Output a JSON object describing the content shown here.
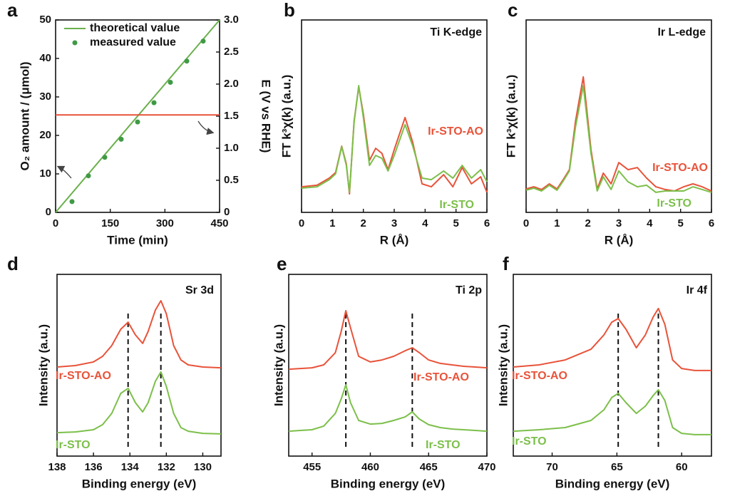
{
  "chart_data": [
    {
      "type": "line",
      "panel_label": "a",
      "xlabel": "Time (min)",
      "ylabel": "O₂ amount / (μmol)",
      "y2label": "E (V vs RHE)",
      "xlim": [
        0,
        450
      ],
      "xticks": [
        0,
        150,
        300,
        450
      ],
      "ylim": [
        0,
        50
      ],
      "yticks": [
        0,
        10,
        20,
        30,
        40,
        50
      ],
      "y2lim": [
        0,
        3.0
      ],
      "y2ticks": [
        0,
        0.5,
        {
          "value": 1.0,
          "label": "1.0"
        },
        1.5,
        {
          "value": 2.0,
          "label": "2.0"
        },
        2.5,
        {
          "value": 3.0,
          "label": "3.0"
        }
      ],
      "legend": "upper left",
      "series": [
        {
          "name": "theoretical value",
          "type": "line",
          "color": "#6ab04c",
          "x": [
            0,
            450
          ],
          "values": [
            0,
            50
          ]
        },
        {
          "name": "measured value",
          "type": "scatter",
          "color": "#3f9a45",
          "x": [
            45,
            90,
            135,
            180,
            225,
            270,
            315,
            360,
            405
          ],
          "values": [
            2.8,
            9.5,
            14.3,
            19.0,
            23.5,
            28.5,
            33.8,
            39.3,
            44.5
          ]
        },
        {
          "type": "line",
          "color": "#e8533a",
          "axis": "y2",
          "x": [
            0,
            450
          ],
          "values": [
            1.52,
            1.52
          ]
        }
      ]
    },
    {
      "type": "line",
      "panel_label": "b",
      "annotation": "Ti K-edge",
      "xlabel": "R (Å)",
      "ylabel": "FT k³χ(k) (a.u.)",
      "xlim": [
        0,
        6
      ],
      "xticks": [
        0,
        1,
        2,
        3,
        4,
        5,
        6
      ],
      "ylim": [
        0,
        10
      ],
      "x": [
        0,
        0.5,
        0.9,
        1.1,
        1.3,
        1.45,
        1.55,
        1.7,
        1.85,
        2.0,
        2.2,
        2.4,
        2.6,
        2.8,
        3.0,
        3.35,
        3.6,
        3.9,
        4.2,
        4.6,
        4.9,
        5.2,
        5.5,
        5.8,
        6.0
      ],
      "series": [
        {
          "name": "Ir-STO-AO",
          "color": "#e8533a",
          "values": [
            1.33,
            1.41,
            1.78,
            2.07,
            3.44,
            2.52,
            0.96,
            4.74,
            6.52,
            5.11,
            2.7,
            3.33,
            3.07,
            2.22,
            3.26,
            4.93,
            3.63,
            1.48,
            1.33,
            1.96,
            1.33,
            2.33,
            1.48,
            1.85,
            1.04
          ]
        },
        {
          "name": "Ir-STO",
          "color": "#7cbf4a",
          "values": [
            1.26,
            1.33,
            1.7,
            2.0,
            3.41,
            2.44,
            1.04,
            4.67,
            6.59,
            4.93,
            2.44,
            2.96,
            2.81,
            2.15,
            2.96,
            4.56,
            3.44,
            1.78,
            1.7,
            2.15,
            1.78,
            2.44,
            1.78,
            2.22,
            1.59
          ]
        }
      ]
    },
    {
      "type": "line",
      "panel_label": "c",
      "annotation": "Ir L-edge",
      "xlabel": "R (Å)",
      "ylabel": "FT k³χ(k) (a.u.)",
      "xlim": [
        0,
        6
      ],
      "xticks": [
        0,
        1,
        2,
        3,
        4,
        5,
        6
      ],
      "ylim": [
        0,
        10
      ],
      "x": [
        0,
        0.25,
        0.5,
        0.75,
        1.0,
        1.2,
        1.4,
        1.6,
        1.85,
        2.1,
        2.3,
        2.5,
        2.75,
        3.0,
        3.3,
        3.6,
        3.9,
        4.2,
        4.5,
        4.8,
        5.1,
        5.4,
        5.7,
        6.0
      ],
      "series": [
        {
          "name": "Ir-STO-AO",
          "color": "#e8533a",
          "values": [
            1.22,
            1.33,
            1.19,
            1.48,
            1.22,
            1.7,
            2.22,
            4.74,
            7.04,
            3.26,
            1.22,
            2.04,
            1.48,
            2.59,
            2.22,
            2.33,
            1.78,
            1.33,
            1.19,
            1.11,
            1.33,
            1.48,
            1.33,
            1.11
          ]
        },
        {
          "name": "Ir-STO",
          "color": "#7cbf4a",
          "values": [
            1.15,
            1.26,
            1.11,
            1.41,
            1.15,
            1.63,
            2.15,
            4.44,
            6.59,
            3.07,
            1.11,
            1.85,
            1.19,
            2.15,
            1.59,
            1.33,
            1.41,
            1.04,
            1.11,
            1.11,
            1.11,
            1.33,
            1.19,
            1.04
          ]
        }
      ]
    },
    {
      "type": "line",
      "panel_label": "d",
      "annotation": "Sr 3d",
      "xlabel": "Binding energy (eV)",
      "ylabel": "Intensity (a.u.)",
      "xlim": [
        138,
        129
      ],
      "xticks": [
        138,
        136,
        134,
        132,
        130
      ],
      "ylim": [
        0,
        10
      ],
      "vlines": [
        134.1,
        132.3
      ],
      "x": [
        138,
        137,
        136,
        135.5,
        135,
        134.5,
        134.1,
        133.7,
        133.3,
        133,
        132.6,
        132.3,
        132,
        131.6,
        131.2,
        130.8,
        130,
        129
      ],
      "series": [
        {
          "name": "Ir-STO-AO",
          "color": "#e8533a",
          "values": [
            4.9,
            4.98,
            5.18,
            5.49,
            6.08,
            6.98,
            7.37,
            6.67,
            6.2,
            6.86,
            8.04,
            8.55,
            7.84,
            6.08,
            5.29,
            5.02,
            4.9,
            4.86
          ]
        },
        {
          "name": "Ir-STO",
          "color": "#7cbf4a",
          "values": [
            1.29,
            1.33,
            1.45,
            1.73,
            2.35,
            3.45,
            3.73,
            2.94,
            2.43,
            2.94,
            4.12,
            4.63,
            3.84,
            2.35,
            1.57,
            1.37,
            1.25,
            1.22
          ]
        }
      ]
    },
    {
      "type": "line",
      "panel_label": "e",
      "annotation": "Ti 2p",
      "xlabel": "Binding energy (eV)",
      "ylabel": "Intensity (a.u.)",
      "xlim": [
        453,
        470
      ],
      "xticks": [
        455,
        460,
        465,
        470
      ],
      "ylim": [
        0,
        10
      ],
      "vlines": [
        457.9,
        463.6
      ],
      "x": [
        453,
        454,
        455,
        456,
        457,
        457.5,
        457.9,
        458.3,
        459,
        460,
        461,
        462,
        463,
        463.6,
        464.2,
        465,
        466,
        467,
        468,
        469,
        470
      ],
      "series": [
        {
          "name": "Ir-STO-AO",
          "color": "#e8533a",
          "values": [
            4.78,
            4.82,
            4.86,
            5.02,
            5.69,
            6.86,
            8.0,
            7.06,
            5.49,
            5.18,
            5.29,
            5.49,
            5.8,
            5.96,
            5.69,
            5.29,
            5.1,
            5.02,
            4.94,
            4.9,
            4.86
          ]
        },
        {
          "name": "Ir-STO",
          "color": "#7cbf4a",
          "values": [
            1.37,
            1.41,
            1.45,
            1.65,
            2.35,
            3.14,
            3.92,
            2.94,
            1.96,
            1.76,
            1.8,
            1.96,
            2.16,
            2.43,
            2.04,
            1.73,
            1.57,
            1.49,
            1.45,
            1.41,
            1.37
          ]
        }
      ]
    },
    {
      "type": "line",
      "panel_label": "f",
      "annotation": "Ir 4f",
      "xlabel": "Binding energy (eV)",
      "ylabel": "Intensity (a.u.)",
      "xlim": [
        73,
        57.7
      ],
      "xticks": [
        70,
        65,
        60
      ],
      "ylim": [
        0,
        10
      ],
      "vlines": [
        64.9,
        61.8
      ],
      "x": [
        73,
        71,
        69,
        67,
        66,
        65.4,
        64.9,
        64.3,
        63.5,
        62.8,
        62.2,
        61.8,
        61.3,
        60.7,
        60,
        59,
        58,
        57.7
      ],
      "series": [
        {
          "name": "Ir-STO-AO",
          "color": "#e8533a",
          "values": [
            4.9,
            5.02,
            5.29,
            5.88,
            6.67,
            7.37,
            7.57,
            6.98,
            5.96,
            6.67,
            7.65,
            8.12,
            7.25,
            5.29,
            4.82,
            4.71,
            4.71,
            4.71
          ]
        },
        {
          "name": "Ir-STO",
          "color": "#7cbf4a",
          "values": [
            1.37,
            1.45,
            1.57,
            1.96,
            2.55,
            3.22,
            3.45,
            2.94,
            2.35,
            2.75,
            3.33,
            3.65,
            3.06,
            1.57,
            1.25,
            1.18,
            1.18,
            1.18
          ]
        }
      ]
    }
  ]
}
